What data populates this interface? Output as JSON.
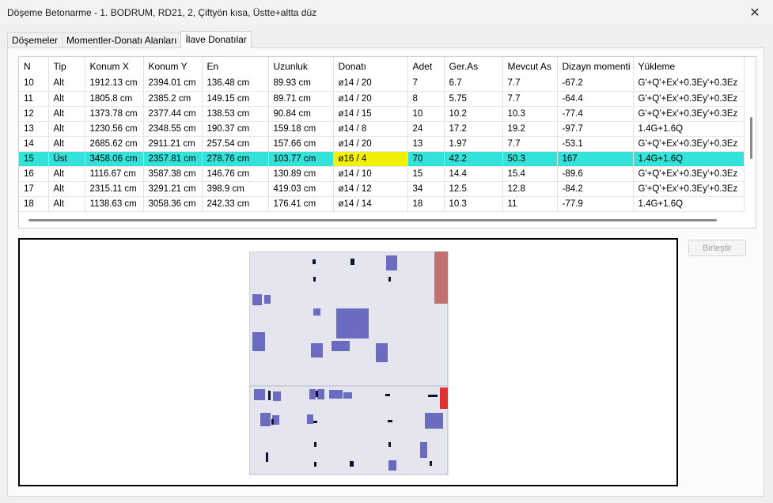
{
  "window": {
    "title": "Döşeme Betonarme - 1. BODRUM, RD21, 2, Çiftyön kısa, Üstte+altta düz",
    "close_glyph": "✕"
  },
  "tabs": [
    {
      "label": "Döşemeler",
      "active": false
    },
    {
      "label": "Momentler-Donatı Alanları",
      "active": false
    },
    {
      "label": "İlave Donatılar",
      "active": true
    }
  ],
  "table": {
    "columns": [
      "N",
      "Tip",
      "Konum X",
      "Konum Y",
      "En",
      "Uzunluk",
      "Donatı",
      "Adet",
      "Ger.As",
      "Mevcut As",
      "Dizayn momenti",
      "Yükleme"
    ],
    "rows": [
      [
        "10",
        "Alt",
        "1912.13 cm",
        "2394.01 cm",
        "136.48 cm",
        "89.93 cm",
        "ø14 / 20",
        "7",
        "6.7",
        "7.7",
        "-67.2",
        "G'+Q'+Ex'+0.3Ey'+0.3Ez"
      ],
      [
        "11",
        "Alt",
        "1805.8 cm",
        "2385.2 cm",
        "149.15 cm",
        "89.71 cm",
        "ø14 / 20",
        "8",
        "5.75",
        "7.7",
        "-64.4",
        "G'+Q'+Ex'+0.3Ey'+0.3Ez"
      ],
      [
        "12",
        "Alt",
        "1373.78 cm",
        "2377.44 cm",
        "138.53 cm",
        "90.84 cm",
        "ø14 / 15",
        "10",
        "10.2",
        "10.3",
        "-77.4",
        "G'+Q'+Ex'+0.3Ey'+0.3Ez"
      ],
      [
        "13",
        "Alt",
        "1230.56 cm",
        "2348.55 cm",
        "190.37 cm",
        "159.18 cm",
        "ø14 / 8",
        "24",
        "17.2",
        "19.2",
        "-97.7",
        "1.4G+1.6Q"
      ],
      [
        "14",
        "Alt",
        "2685.62 cm",
        "2911.21 cm",
        "257.54 cm",
        "157.66 cm",
        "ø14 / 20",
        "13",
        "1.97",
        "7.7",
        "-53.1",
        "G'+Q'+Ex'+0.3Ey'+0.3Ez"
      ],
      [
        "15",
        "Üst",
        "3458.06 cm",
        "2357.81 cm",
        "278.76 cm",
        "103.77 cm",
        "ø16 / 4",
        "70",
        "42.2",
        "50.3",
        "167",
        "1.4G+1.6Q"
      ],
      [
        "16",
        "Alt",
        "1116.67 cm",
        "3587.38 cm",
        "146.76 cm",
        "130.89 cm",
        "ø14 / 10",
        "15",
        "14.4",
        "15.4",
        "-89.6",
        "G'+Q'+Ex'+0.3Ey'+0.3Ez"
      ],
      [
        "17",
        "Alt",
        "2315.11 cm",
        "3291.21 cm",
        "398.9 cm",
        "419.03 cm",
        "ø14 / 12",
        "34",
        "12.5",
        "12.8",
        "-84.2",
        "G'+Q'+Ex'+0.3Ey'+0.3Ez"
      ],
      [
        "18",
        "Alt",
        "1138.63 cm",
        "3058.36 cm",
        "242.33 cm",
        "176.41 cm",
        "ø14 / 14",
        "18",
        "10.3",
        "11",
        "-77.9",
        "1.4G+1.6Q"
      ]
    ],
    "selected_row": "15"
  },
  "merge_button": {
    "label": "Birleştir",
    "enabled": false
  },
  "colors": {
    "selection": "#33e3da",
    "cell_highlight": "#f0f00a",
    "slab": "#e5e5f0",
    "rebar": "#6b6bc0",
    "edge_dark_red": "#c07070",
    "edge_red": "#e03030"
  }
}
